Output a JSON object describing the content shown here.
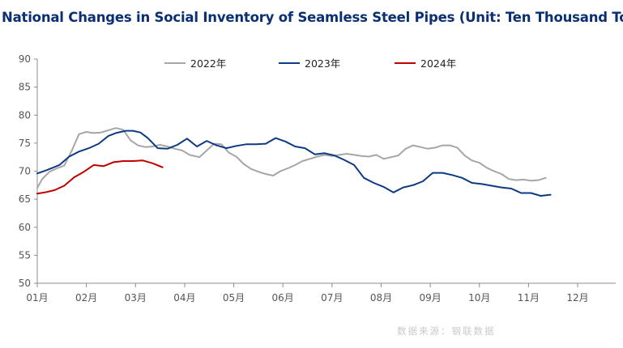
{
  "title": "National Changes in Social Inventory of Seamless Steel Pipes (Unit: Ten Thousand Tons)",
  "source": "数据来源：钢联数据",
  "chart_data": {
    "type": "line",
    "title": "National Changes in Social Inventory of Seamless Steel Pipes (Unit: Ten Thousand Tons)",
    "xlabel": "",
    "ylabel": "",
    "xlim": [
      1,
      12.9
    ],
    "ylim": [
      50,
      90
    ],
    "y_ticks": [
      50,
      55,
      60,
      65,
      70,
      75,
      80,
      85,
      90
    ],
    "x_ticks": [
      {
        "x": 1,
        "label": "01月"
      },
      {
        "x": 2,
        "label": "02月"
      },
      {
        "x": 3,
        "label": "03月"
      },
      {
        "x": 4,
        "label": "04月"
      },
      {
        "x": 5,
        "label": "05月"
      },
      {
        "x": 6,
        "label": "06月"
      },
      {
        "x": 7,
        "label": "07月"
      },
      {
        "x": 8,
        "label": "08月"
      },
      {
        "x": 9,
        "label": "09月"
      },
      {
        "x": 10,
        "label": "10月"
      },
      {
        "x": 11,
        "label": "11月"
      },
      {
        "x": 12,
        "label": "12月"
      }
    ],
    "grid": false,
    "legend_position": "top-center",
    "series": [
      {
        "name": "2022年",
        "color": "#a6a6a6",
        "points": [
          [
            1.0,
            67.0
          ],
          [
            1.1,
            68.6
          ],
          [
            1.25,
            69.9
          ],
          [
            1.4,
            70.5
          ],
          [
            1.55,
            71.0
          ],
          [
            1.7,
            73.6
          ],
          [
            1.85,
            76.6
          ],
          [
            2.0,
            77.0
          ],
          [
            2.15,
            76.8
          ],
          [
            2.3,
            76.9
          ],
          [
            2.45,
            77.3
          ],
          [
            2.6,
            77.7
          ],
          [
            2.75,
            77.4
          ],
          [
            2.9,
            75.5
          ],
          [
            3.05,
            74.6
          ],
          [
            3.2,
            74.3
          ],
          [
            3.35,
            74.4
          ],
          [
            3.5,
            74.7
          ],
          [
            3.65,
            74.4
          ],
          [
            3.8,
            74.0
          ],
          [
            3.95,
            73.7
          ],
          [
            4.1,
            72.9
          ],
          [
            4.3,
            72.5
          ],
          [
            4.45,
            73.7
          ],
          [
            4.6,
            74.9
          ],
          [
            4.75,
            74.8
          ],
          [
            4.9,
            73.3
          ],
          [
            5.05,
            72.6
          ],
          [
            5.2,
            71.3
          ],
          [
            5.35,
            70.4
          ],
          [
            5.5,
            69.9
          ],
          [
            5.65,
            69.5
          ],
          [
            5.8,
            69.2
          ],
          [
            5.95,
            70.0
          ],
          [
            6.1,
            70.5
          ],
          [
            6.25,
            71.1
          ],
          [
            6.4,
            71.8
          ],
          [
            6.55,
            72.2
          ],
          [
            6.7,
            72.6
          ],
          [
            6.85,
            72.9
          ],
          [
            7.0,
            72.7
          ],
          [
            7.15,
            72.9
          ],
          [
            7.3,
            73.1
          ],
          [
            7.45,
            72.9
          ],
          [
            7.6,
            72.7
          ],
          [
            7.75,
            72.6
          ],
          [
            7.9,
            72.9
          ],
          [
            8.05,
            72.2
          ],
          [
            8.2,
            72.5
          ],
          [
            8.35,
            72.8
          ],
          [
            8.5,
            74.0
          ],
          [
            8.65,
            74.6
          ],
          [
            8.8,
            74.3
          ],
          [
            8.95,
            74.0
          ],
          [
            9.1,
            74.2
          ],
          [
            9.25,
            74.6
          ],
          [
            9.4,
            74.6
          ],
          [
            9.55,
            74.2
          ],
          [
            9.7,
            72.8
          ],
          [
            9.85,
            71.9
          ],
          [
            10.0,
            71.5
          ],
          [
            10.15,
            70.6
          ],
          [
            10.3,
            70.0
          ],
          [
            10.45,
            69.5
          ],
          [
            10.6,
            68.6
          ],
          [
            10.75,
            68.4
          ],
          [
            10.9,
            68.5
          ],
          [
            11.05,
            68.3
          ],
          [
            11.2,
            68.4
          ],
          [
            11.35,
            68.8
          ]
        ]
      },
      {
        "name": "2023年",
        "color": "#0d3a82",
        "points": [
          [
            1.0,
            69.6
          ],
          [
            1.2,
            70.2
          ],
          [
            1.45,
            71.1
          ],
          [
            1.65,
            72.6
          ],
          [
            1.85,
            73.5
          ],
          [
            2.05,
            74.1
          ],
          [
            2.25,
            74.9
          ],
          [
            2.45,
            76.3
          ],
          [
            2.6,
            76.8
          ],
          [
            2.8,
            77.2
          ],
          [
            2.95,
            77.2
          ],
          [
            3.1,
            76.9
          ],
          [
            3.25,
            75.9
          ],
          [
            3.45,
            74.1
          ],
          [
            3.65,
            74.0
          ],
          [
            3.85,
            74.7
          ],
          [
            4.05,
            75.8
          ],
          [
            4.25,
            74.4
          ],
          [
            4.45,
            75.4
          ],
          [
            4.65,
            74.6
          ],
          [
            4.85,
            74.1
          ],
          [
            5.05,
            74.5
          ],
          [
            5.25,
            74.8
          ],
          [
            5.45,
            74.8
          ],
          [
            5.65,
            74.9
          ],
          [
            5.85,
            75.9
          ],
          [
            6.05,
            75.3
          ],
          [
            6.25,
            74.4
          ],
          [
            6.45,
            74.1
          ],
          [
            6.65,
            73.0
          ],
          [
            6.85,
            73.2
          ],
          [
            7.05,
            72.8
          ],
          [
            7.25,
            72.0
          ],
          [
            7.45,
            71.1
          ],
          [
            7.65,
            68.8
          ],
          [
            7.85,
            67.9
          ],
          [
            8.05,
            67.2
          ],
          [
            8.25,
            66.2
          ],
          [
            8.45,
            67.1
          ],
          [
            8.65,
            67.5
          ],
          [
            8.85,
            68.2
          ],
          [
            9.05,
            69.7
          ],
          [
            9.25,
            69.7
          ],
          [
            9.45,
            69.3
          ],
          [
            9.65,
            68.8
          ],
          [
            9.85,
            67.9
          ],
          [
            10.05,
            67.7
          ],
          [
            10.25,
            67.4
          ],
          [
            10.45,
            67.1
          ],
          [
            10.65,
            66.9
          ],
          [
            10.85,
            66.1
          ],
          [
            11.05,
            66.1
          ],
          [
            11.25,
            65.6
          ],
          [
            11.45,
            65.8
          ]
        ]
      },
      {
        "name": "2024年",
        "color": "#c00000",
        "points": [
          [
            1.0,
            66.0
          ],
          [
            1.15,
            66.2
          ],
          [
            1.35,
            66.6
          ],
          [
            1.55,
            67.4
          ],
          [
            1.75,
            68.9
          ],
          [
            1.95,
            69.9
          ],
          [
            2.15,
            71.1
          ],
          [
            2.35,
            70.9
          ],
          [
            2.55,
            71.6
          ],
          [
            2.75,
            71.8
          ],
          [
            2.95,
            71.8
          ],
          [
            3.15,
            71.9
          ],
          [
            3.35,
            71.4
          ],
          [
            3.55,
            70.7
          ]
        ]
      }
    ]
  }
}
